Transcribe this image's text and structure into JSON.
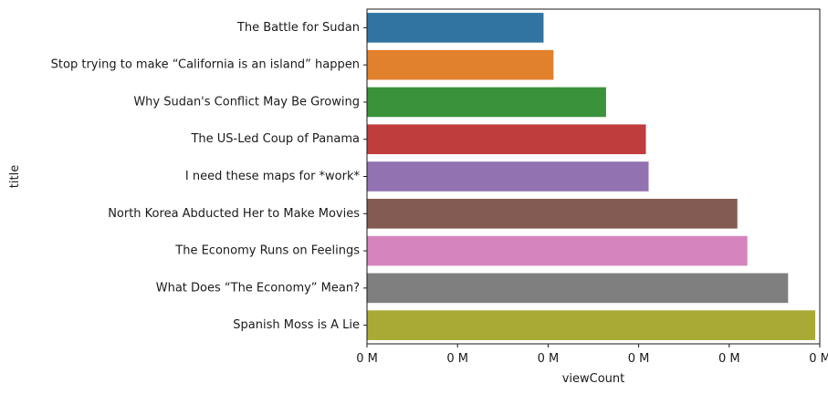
{
  "chart_data": {
    "type": "bar",
    "orientation": "horizontal",
    "categories": [
      "The Battle for Sudan",
      "Stop trying to make “California is an island” happen",
      "Why Sudan's Conflict May Be Growing",
      "The US-Led Coup of Panama",
      "I need these maps for *work*",
      "North Korea Abducted Her to Make Movies",
      "The Economy Runs on Feelings",
      "What Does “The Economy” Mean?",
      "Spanish Moss is A Lie"
    ],
    "values": [
      195000,
      206000,
      264000,
      308000,
      311000,
      409000,
      420000,
      465000,
      495000
    ],
    "colors": [
      "#3274a1",
      "#e1812c",
      "#3a923a",
      "#c03d3e",
      "#9372b2",
      "#845b53",
      "#d684bd",
      "#7f7f7f",
      "#a9aa35"
    ],
    "xlim": [
      0,
      500000
    ],
    "xticks": [
      0,
      100000,
      200000,
      300000,
      400000,
      500000
    ],
    "xtick_labels": [
      "0 M",
      "0 M",
      "0 M",
      "0 M",
      "0 M",
      "0 M"
    ],
    "xlabel": "viewCount",
    "ylabel": "title",
    "title": "",
    "grid": false,
    "legend": "none"
  }
}
